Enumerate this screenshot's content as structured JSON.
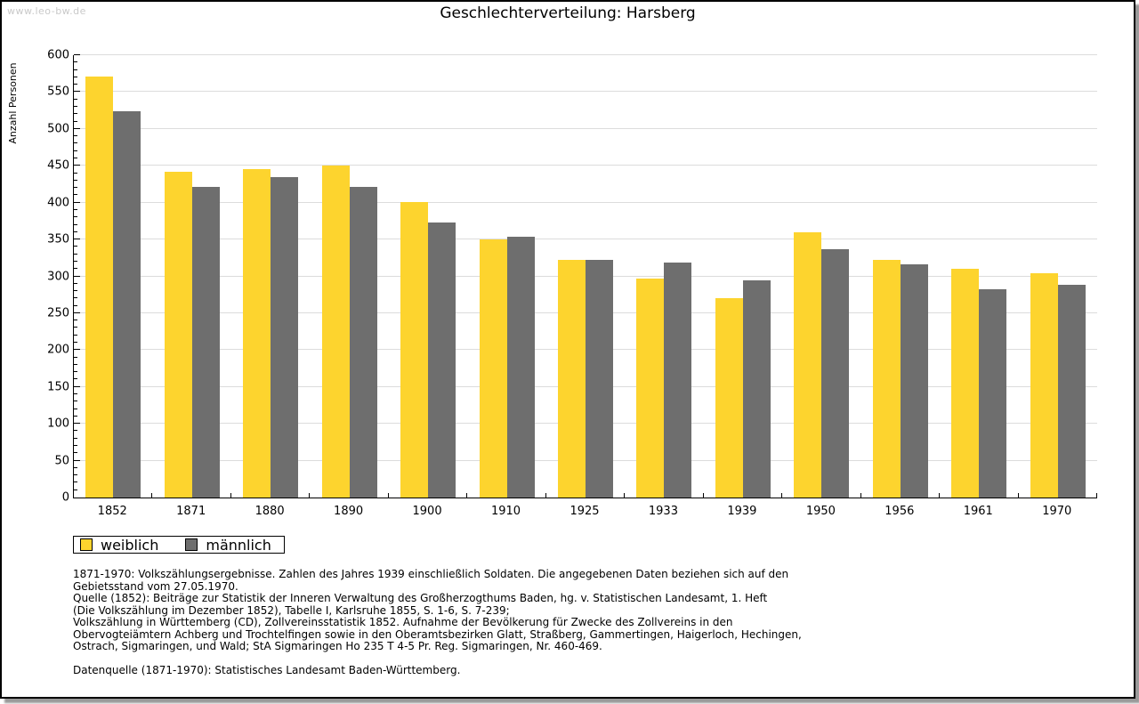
{
  "page": {
    "watermark": "www.leo-bw.de",
    "title": "Geschlechterverteilung: Harsberg"
  },
  "chart_data": {
    "type": "bar",
    "title": "Geschlechterverteilung: Harsberg",
    "xlabel": "",
    "ylabel": "Anzahl Personen",
    "ylim": [
      0,
      600
    ],
    "ytick_step": 50,
    "yminor_step": 10,
    "grid": "horizontal",
    "gridline_color": "#dcdcdc",
    "legend_position": "bottom-left",
    "categories": [
      "1852",
      "1871",
      "1880",
      "1890",
      "1900",
      "1910",
      "1925",
      "1933",
      "1939",
      "1950",
      "1956",
      "1961",
      "1970"
    ],
    "series": [
      {
        "name": "weiblich",
        "color": "#fdd42e",
        "values": [
          571,
          442,
          446,
          450,
          401,
          350,
          322,
          297,
          270,
          360,
          322,
          310,
          304
        ]
      },
      {
        "name": "männlich",
        "color": "#6e6e6e",
        "values": [
          524,
          421,
          435,
          421,
          373,
          354,
          322,
          319,
          295,
          337,
          316,
          282,
          288
        ]
      }
    ]
  },
  "legend": {
    "items": [
      {
        "label": "weiblich",
        "color": "#fdd42e"
      },
      {
        "label": "männlich",
        "color": "#6e6e6e"
      }
    ]
  },
  "footnotes": {
    "lines": [
      "1871-1970: Volkszählungsergebnisse. Zahlen des Jahres 1939 einschließlich Soldaten. Die angegebenen Daten beziehen sich auf den",
      "Gebietsstand vom 27.05.1970.",
      "Quelle (1852): Beiträge zur Statistik der Inneren Verwaltung des Großherzogthums Baden, hg. v. Statistischen Landesamt, 1. Heft",
      "(Die Volkszählung im Dezember 1852), Tabelle I, Karlsruhe 1855, S. 1-6, S. 7-239;",
      "Volkszählung in Württemberg (CD), Zollvereinsstatistik 1852. Aufnahme der Bevölkerung für Zwecke des Zollvereins in den",
      "Obervogteiämtern Achberg und Trochtelfingen sowie in den Oberamtsbezirken Glatt, Straßberg, Gammertingen, Haigerloch, Hechingen,",
      "Ostrach, Sigmaringen, und Wald; StA Sigmaringen Ho 235 T 4-5 Pr. Reg. Sigmaringen, Nr. 460-469."
    ],
    "datasource": "Datenquelle (1871-1970): Statistisches Landesamt Baden-Württemberg."
  }
}
